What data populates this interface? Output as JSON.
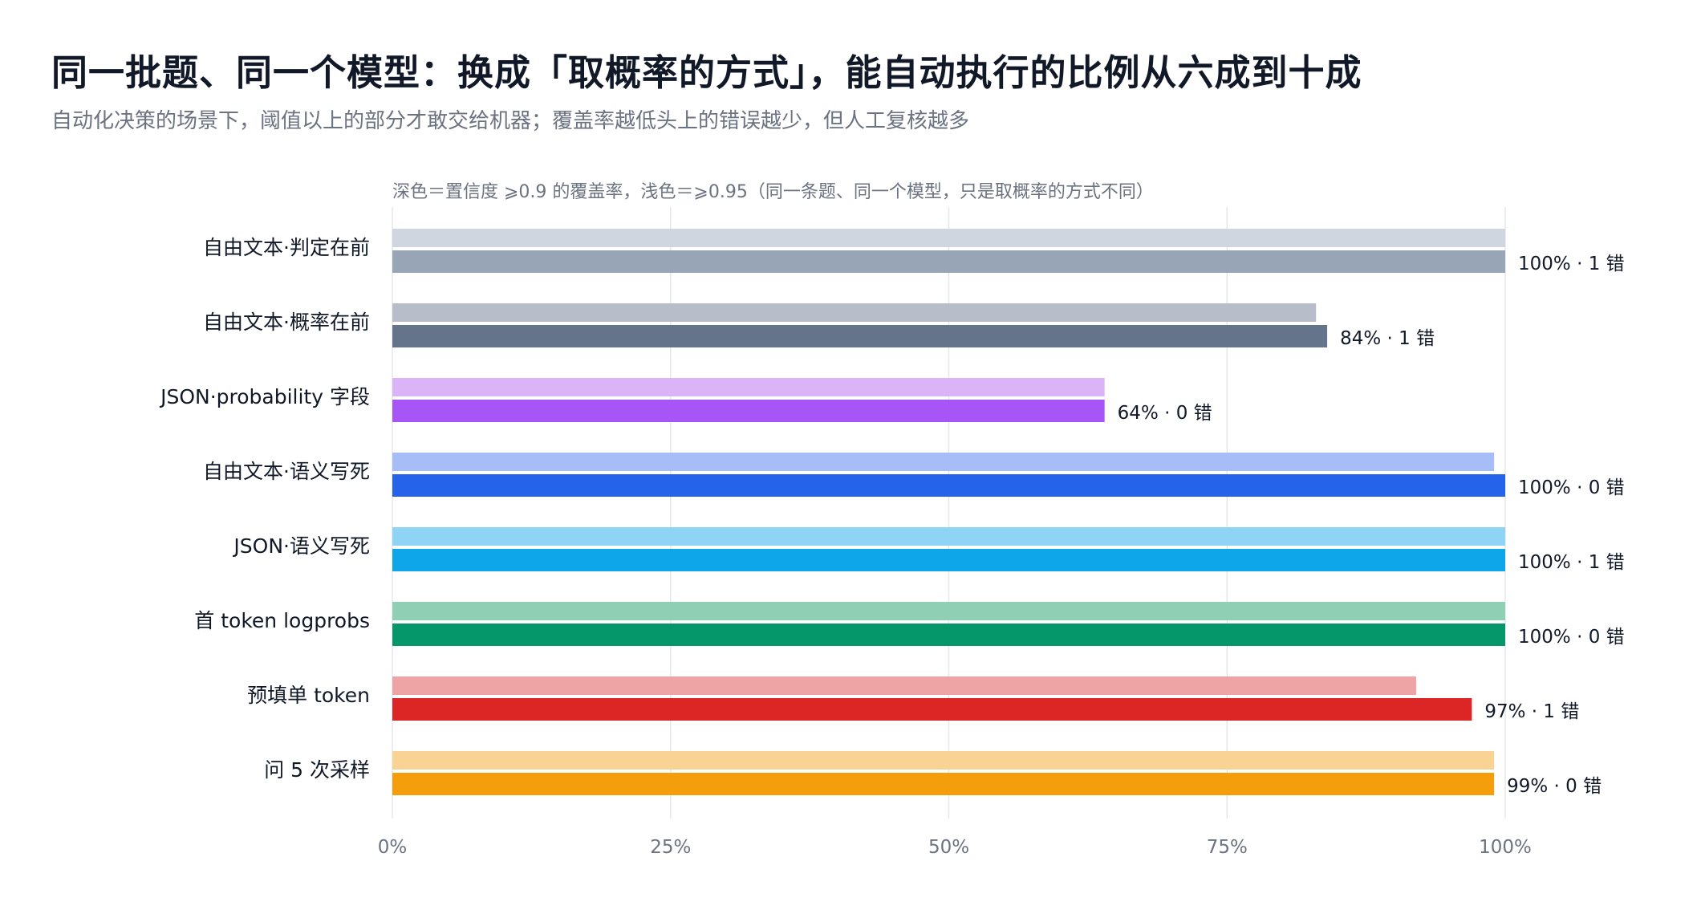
{
  "title": "同一批题、同一个模型：换成「取概率的方式」，能自动执行的比例从六成到十成",
  "subtitle": "自动化决策的场景下，阈值以上的部分才敢交给机器；覆盖率越低头上的错误越少，但人工复核越多",
  "chart_data": {
    "type": "bar",
    "orientation": "horizontal",
    "note": "深色＝置信度 ⩾0.9 的覆盖率，浅色＝⩾0.95（同一条题、同一个模型，只是取概率的方式不同）",
    "xlim": [
      0,
      100
    ],
    "x_ticks": [
      0,
      25,
      50,
      75,
      100
    ],
    "x_tick_labels": [
      "0%",
      "25%",
      "50%",
      "75%",
      "100%"
    ],
    "grid": true,
    "categories": [
      "自由文本·判定在前",
      "自由文本·概率在前",
      "JSON·probability 字段",
      "自由文本·语义写死",
      "JSON·语义写死",
      "首 token logprobs",
      "预填单 token",
      "问 5 次采样"
    ],
    "series": [
      {
        "name": "⩾0.95",
        "values": [
          100,
          83,
          64,
          99,
          100,
          100,
          92,
          99
        ],
        "colors": [
          "#cfd6df",
          "#b7bec9",
          "#dbb4f8",
          "#a7bdf7",
          "#8fd3f5",
          "#8fd0b4",
          "#eea4a4",
          "#f9d393"
        ]
      },
      {
        "name": "⩾0.9",
        "values": [
          100,
          84,
          64,
          100,
          100,
          100,
          97,
          99
        ],
        "colors": [
          "#98a5b7",
          "#64748b",
          "#a855f7",
          "#2563eb",
          "#0ea5e9",
          "#059669",
          "#dc2626",
          "#f59e0b"
        ],
        "labels": [
          "100% · 1 错",
          "84% · 1 错",
          "64% · 0 错",
          "100% · 0 错",
          "100% · 1 错",
          "100% · 0 错",
          "97% · 1 错",
          "99% · 0 错"
        ]
      }
    ]
  }
}
